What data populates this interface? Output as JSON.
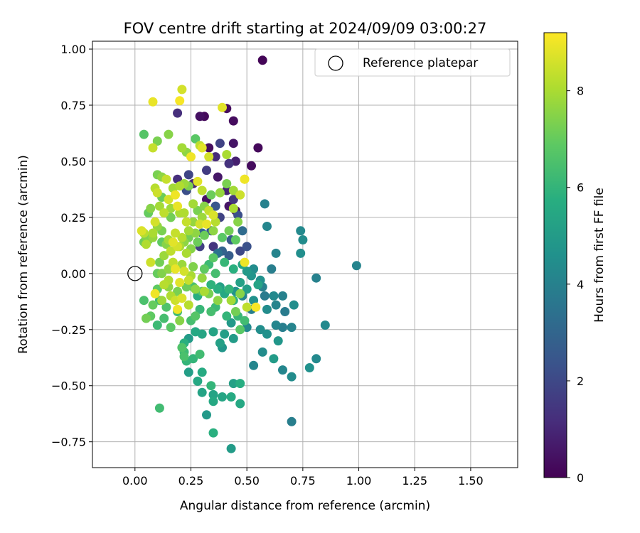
{
  "chart_data": {
    "type": "scatter",
    "title": "FOV centre drift starting at 2024/09/09 03:00:27",
    "xlabel": "Angular distance from reference (arcmin)",
    "ylabel": "Rotation from reference (arcmin)",
    "xlim": [
      -0.19,
      1.71
    ],
    "ylim": [
      -0.865,
      1.035
    ],
    "x_ticks": [
      0.0,
      0.25,
      0.5,
      0.75,
      1.0,
      1.25,
      1.5
    ],
    "x_tick_labels": [
      "0.00",
      "0.25",
      "0.50",
      "0.75",
      "1.00",
      "1.25",
      "1.50"
    ],
    "y_ticks": [
      -0.75,
      -0.5,
      -0.25,
      0.0,
      0.25,
      0.5,
      0.75,
      1.0
    ],
    "y_tick_labels": [
      "−0.75",
      "−0.50",
      "−0.25",
      "0.00",
      "0.25",
      "0.50",
      "0.75",
      "1.00"
    ],
    "grid": true,
    "legend": {
      "placement": "top-right",
      "entries": [
        {
          "label": "Reference platepar",
          "marker": "open-circle"
        }
      ]
    },
    "reference_point": {
      "x": 0.0,
      "y": 0.0
    },
    "colorbar": {
      "label": "Hours from first FF file",
      "range": [
        0,
        9.2
      ],
      "ticks": [
        0,
        2,
        4,
        6,
        8
      ],
      "tick_labels": [
        "0",
        "2",
        "4",
        "6",
        "8"
      ],
      "colormap": "viridis"
    },
    "points": [
      [
        0.57,
        0.95,
        0.1
      ],
      [
        0.29,
        0.7,
        0.4
      ],
      [
        0.31,
        0.7,
        0.2
      ],
      [
        0.41,
        0.735,
        0.3
      ],
      [
        0.19,
        0.715,
        1.2
      ],
      [
        0.44,
        0.68,
        0.3
      ],
      [
        0.38,
        0.58,
        1.8
      ],
      [
        0.44,
        0.58,
        0.5
      ],
      [
        0.55,
        0.56,
        0.2
      ],
      [
        0.33,
        0.56,
        0.3
      ],
      [
        0.52,
        0.48,
        0.3
      ],
      [
        0.45,
        0.5,
        0.8
      ],
      [
        0.36,
        0.52,
        1.1
      ],
      [
        0.42,
        0.49,
        1.3
      ],
      [
        0.32,
        0.46,
        1.6
      ],
      [
        0.24,
        0.44,
        1.9
      ],
      [
        0.19,
        0.42,
        1.2
      ],
      [
        0.37,
        0.43,
        0.6
      ],
      [
        0.26,
        0.4,
        1.0
      ],
      [
        0.41,
        0.37,
        0.9
      ],
      [
        0.23,
        0.37,
        2.2
      ],
      [
        0.44,
        0.33,
        1.4
      ],
      [
        0.32,
        0.33,
        0.4
      ],
      [
        0.42,
        0.3,
        0.5
      ],
      [
        0.45,
        0.28,
        0.4
      ],
      [
        0.36,
        0.3,
        2.5
      ],
      [
        0.46,
        0.26,
        2.2
      ],
      [
        0.38,
        0.25,
        1.8
      ],
      [
        0.34,
        0.19,
        2.6
      ],
      [
        0.48,
        0.19,
        3.2
      ],
      [
        0.3,
        0.18,
        3.0
      ],
      [
        0.43,
        0.15,
        2.6
      ],
      [
        0.35,
        0.12,
        1.4
      ],
      [
        0.29,
        0.12,
        1.7
      ],
      [
        0.39,
        0.1,
        2.9
      ],
      [
        0.47,
        0.1,
        2.0
      ],
      [
        0.5,
        0.12,
        2.3
      ],
      [
        0.37,
        0.09,
        3.5
      ],
      [
        0.42,
        0.08,
        2.7
      ],
      [
        0.58,
        0.31,
        4.0
      ],
      [
        0.59,
        0.21,
        4.2
      ],
      [
        0.74,
        0.19,
        4.3
      ],
      [
        0.75,
        0.15,
        4.4
      ],
      [
        0.63,
        0.09,
        4.1
      ],
      [
        0.74,
        0.09,
        4.5
      ],
      [
        0.99,
        0.035,
        4.1
      ],
      [
        0.61,
        0.02,
        3.9
      ],
      [
        0.53,
        0.02,
        4.4
      ],
      [
        0.56,
        -0.03,
        4.6
      ],
      [
        0.57,
        -0.06,
        4.0
      ],
      [
        0.81,
        -0.02,
        4.0
      ],
      [
        0.66,
        -0.1,
        4.0
      ],
      [
        0.62,
        -0.1,
        4.3
      ],
      [
        0.58,
        -0.1,
        3.8
      ],
      [
        0.53,
        -0.12,
        4.6
      ],
      [
        0.48,
        -0.1,
        4.2
      ],
      [
        0.45,
        -0.08,
        4.7
      ],
      [
        0.52,
        -0.16,
        3.9
      ],
      [
        0.59,
        -0.16,
        4.4
      ],
      [
        0.63,
        -0.14,
        4.1
      ],
      [
        0.71,
        -0.14,
        4.5
      ],
      [
        0.67,
        -0.17,
        3.8
      ],
      [
        0.63,
        -0.23,
        4.2
      ],
      [
        0.59,
        -0.27,
        4.6
      ],
      [
        0.66,
        -0.24,
        3.9
      ],
      [
        0.7,
        -0.24,
        4.1
      ],
      [
        0.56,
        -0.25,
        4.5
      ],
      [
        0.5,
        -0.24,
        4.3
      ],
      [
        0.85,
        -0.23,
        4.3
      ],
      [
        0.64,
        -0.3,
        4.8
      ],
      [
        0.62,
        -0.38,
        5.0
      ],
      [
        0.57,
        -0.35,
        4.4
      ],
      [
        0.53,
        -0.41,
        4.2
      ],
      [
        0.66,
        -0.43,
        4.2
      ],
      [
        0.7,
        -0.46,
        4.4
      ],
      [
        0.78,
        -0.42,
        4.6
      ],
      [
        0.81,
        -0.38,
        4.3
      ],
      [
        0.7,
        -0.66,
        3.9
      ],
      [
        0.43,
        -0.22,
        4.9
      ],
      [
        0.4,
        -0.27,
        5.1
      ],
      [
        0.44,
        -0.29,
        5.0
      ],
      [
        0.39,
        -0.33,
        4.8
      ],
      [
        0.38,
        -0.31,
        5.2
      ],
      [
        0.35,
        -0.26,
        5.3
      ],
      [
        0.3,
        -0.27,
        5.4
      ],
      [
        0.27,
        -0.26,
        5.5
      ],
      [
        0.24,
        -0.29,
        5.0
      ],
      [
        0.22,
        -0.31,
        5.8
      ],
      [
        0.24,
        -0.44,
        5.1
      ],
      [
        0.3,
        -0.44,
        5.6
      ],
      [
        0.28,
        -0.48,
        5.5
      ],
      [
        0.3,
        -0.53,
        5.3
      ],
      [
        0.34,
        -0.5,
        6.0
      ],
      [
        0.35,
        -0.54,
        5.3
      ],
      [
        0.35,
        -0.57,
        5.5
      ],
      [
        0.39,
        -0.55,
        5.4
      ],
      [
        0.43,
        -0.55,
        5.6
      ],
      [
        0.32,
        -0.63,
        4.9
      ],
      [
        0.35,
        -0.71,
        5.8
      ],
      [
        0.43,
        -0.78,
        5.0
      ],
      [
        0.44,
        -0.49,
        5.2
      ],
      [
        0.47,
        -0.49,
        5.7
      ],
      [
        0.47,
        -0.58,
        5.5
      ],
      [
        0.11,
        -0.6,
        6.3
      ],
      [
        0.23,
        -0.39,
        6.0
      ],
      [
        0.22,
        -0.37,
        6.5
      ],
      [
        0.22,
        -0.35,
        6.2
      ],
      [
        0.21,
        -0.33,
        6.6
      ],
      [
        0.29,
        -0.36,
        6.3
      ],
      [
        0.26,
        -0.38,
        6.0
      ],
      [
        0.16,
        -0.24,
        6.8
      ],
      [
        0.1,
        -0.23,
        6.2
      ],
      [
        0.13,
        -0.2,
        6.4
      ],
      [
        0.07,
        -0.19,
        6.9
      ],
      [
        0.05,
        -0.2,
        7.2
      ],
      [
        0.04,
        -0.12,
        6.5
      ],
      [
        0.11,
        -0.12,
        6.3
      ],
      [
        0.08,
        -0.14,
        7.0
      ],
      [
        0.14,
        -0.15,
        6.6
      ],
      [
        0.19,
        -0.17,
        6.2
      ],
      [
        0.2,
        -0.21,
        7.5
      ],
      [
        0.25,
        -0.21,
        6.4
      ],
      [
        0.27,
        -0.19,
        6.7
      ],
      [
        0.29,
        -0.16,
        6.1
      ],
      [
        0.34,
        -0.17,
        6.4
      ],
      [
        0.36,
        -0.15,
        6.2
      ],
      [
        0.41,
        -0.19,
        6.0
      ],
      [
        0.46,
        -0.19,
        6.1
      ],
      [
        0.47,
        -0.25,
        6.8
      ],
      [
        0.49,
        -0.21,
        6.3
      ],
      [
        0.44,
        -0.12,
        5.9
      ],
      [
        0.4,
        -0.09,
        5.5
      ],
      [
        0.37,
        -0.07,
        5.8
      ],
      [
        0.38,
        -0.06,
        5.2
      ],
      [
        0.34,
        -0.05,
        5.9
      ],
      [
        0.3,
        -0.08,
        6.7
      ],
      [
        0.28,
        -0.1,
        5.7
      ],
      [
        0.26,
        -0.06,
        6.5
      ],
      [
        0.23,
        -0.06,
        7.1
      ],
      [
        0.19,
        -0.08,
        7.3
      ],
      [
        0.15,
        -0.06,
        7.6
      ],
      [
        0.13,
        -0.05,
        8.2
      ],
      [
        0.1,
        -0.07,
        6.9
      ],
      [
        0.09,
        -0.09,
        9.0
      ],
      [
        0.12,
        -0.12,
        7.8
      ],
      [
        0.16,
        -0.1,
        8.1
      ],
      [
        0.18,
        -0.12,
        8.5
      ],
      [
        0.21,
        -0.11,
        8.7
      ],
      [
        0.19,
        -0.16,
        9.0
      ],
      [
        0.24,
        -0.14,
        8.2
      ],
      [
        0.25,
        -0.01,
        8.0
      ],
      [
        0.22,
        0.01,
        8.6
      ],
      [
        0.18,
        0.02,
        8.9
      ],
      [
        0.17,
        0.05,
        8.3
      ],
      [
        0.21,
        0.04,
        7.8
      ],
      [
        0.26,
        0.03,
        7.4
      ],
      [
        0.31,
        0.02,
        6.9
      ],
      [
        0.3,
        -0.02,
        7.7
      ],
      [
        0.36,
        0.0,
        6.4
      ],
      [
        0.33,
        0.04,
        6.2
      ],
      [
        0.35,
        0.07,
        6.8
      ],
      [
        0.4,
        0.05,
        6.1
      ],
      [
        0.44,
        0.02,
        5.8
      ],
      [
        0.48,
        0.04,
        5.4
      ],
      [
        0.5,
        0.01,
        4.9
      ],
      [
        0.47,
        -0.04,
        5.2
      ],
      [
        0.42,
        -0.07,
        6.0
      ],
      [
        0.5,
        -0.07,
        5.1
      ],
      [
        0.55,
        -0.05,
        5.3
      ],
      [
        0.52,
        -0.01,
        4.7
      ],
      [
        0.54,
        -0.15,
        9.1
      ],
      [
        0.5,
        -0.15,
        8.3
      ],
      [
        0.45,
        -0.17,
        7.2
      ],
      [
        0.47,
        -0.09,
        7.5
      ],
      [
        0.43,
        -0.12,
        7.9
      ],
      [
        0.37,
        -0.12,
        7.6
      ],
      [
        0.33,
        -0.09,
        7.3
      ],
      [
        0.31,
        -0.08,
        8.0
      ],
      [
        0.27,
        -0.07,
        7.6
      ],
      [
        0.24,
        -0.03,
        8.4
      ],
      [
        0.2,
        -0.04,
        8.8
      ],
      [
        0.15,
        -0.03,
        8.1
      ],
      [
        0.12,
        0.0,
        7.4
      ],
      [
        0.1,
        0.0,
        7.0
      ],
      [
        0.07,
        0.05,
        8.5
      ],
      [
        0.11,
        0.05,
        7.2
      ],
      [
        0.15,
        0.02,
        7.6
      ],
      [
        0.13,
        0.08,
        7.8
      ],
      [
        0.16,
        0.1,
        8.3
      ],
      [
        0.19,
        0.12,
        8.6
      ],
      [
        0.23,
        0.09,
        8.0
      ],
      [
        0.25,
        0.11,
        7.5
      ],
      [
        0.28,
        0.14,
        7.1
      ],
      [
        0.27,
        0.18,
        7.6
      ],
      [
        0.24,
        0.19,
        7.9
      ],
      [
        0.21,
        0.16,
        8.2
      ],
      [
        0.18,
        0.18,
        8.4
      ],
      [
        0.15,
        0.15,
        7.9
      ],
      [
        0.12,
        0.19,
        7.3
      ],
      [
        0.1,
        0.21,
        7.7
      ],
      [
        0.08,
        0.18,
        8.0
      ],
      [
        0.05,
        0.16,
        7.4
      ],
      [
        0.04,
        0.14,
        7.1
      ],
      [
        0.03,
        0.19,
        8.7
      ],
      [
        0.04,
        0.18,
        8.2
      ],
      [
        0.09,
        0.23,
        8.6
      ],
      [
        0.13,
        0.27,
        8.3
      ],
      [
        0.16,
        0.29,
        7.8
      ],
      [
        0.19,
        0.3,
        8.9
      ],
      [
        0.22,
        0.27,
        8.1
      ],
      [
        0.26,
        0.31,
        7.9
      ],
      [
        0.28,
        0.28,
        7.3
      ],
      [
        0.31,
        0.3,
        7.5
      ],
      [
        0.33,
        0.28,
        8.4
      ],
      [
        0.35,
        0.26,
        8.7
      ],
      [
        0.32,
        0.22,
        8.9
      ],
      [
        0.36,
        0.23,
        8.2
      ],
      [
        0.35,
        0.19,
        7.6
      ],
      [
        0.31,
        0.17,
        7.1
      ],
      [
        0.39,
        0.16,
        6.8
      ],
      [
        0.42,
        0.19,
        7.2
      ],
      [
        0.45,
        0.15,
        6.9
      ],
      [
        0.46,
        0.23,
        7.5
      ],
      [
        0.44,
        0.29,
        8.0
      ],
      [
        0.47,
        0.35,
        8.5
      ],
      [
        0.49,
        0.42,
        8.7
      ],
      [
        0.44,
        0.37,
        7.9
      ],
      [
        0.41,
        0.4,
        7.3
      ],
      [
        0.38,
        0.36,
        7.7
      ],
      [
        0.34,
        0.35,
        7.1
      ],
      [
        0.3,
        0.37,
        8.3
      ],
      [
        0.28,
        0.41,
        8.8
      ],
      [
        0.24,
        0.39,
        7.4
      ],
      [
        0.22,
        0.4,
        7.8
      ],
      [
        0.2,
        0.39,
        8.1
      ],
      [
        0.17,
        0.38,
        7.9
      ],
      [
        0.14,
        0.42,
        8.4
      ],
      [
        0.12,
        0.43,
        7.6
      ],
      [
        0.1,
        0.44,
        7.3
      ],
      [
        0.09,
        0.38,
        8.2
      ],
      [
        0.1,
        0.36,
        8.5
      ],
      [
        0.12,
        0.34,
        7.1
      ],
      [
        0.15,
        0.33,
        8.6
      ],
      [
        0.18,
        0.35,
        9.0
      ],
      [
        0.06,
        0.27,
        7.0
      ],
      [
        0.07,
        0.29,
        7.5
      ],
      [
        0.11,
        0.3,
        7.9
      ],
      [
        0.16,
        0.25,
        7.2
      ],
      [
        0.2,
        0.27,
        8.0
      ],
      [
        0.23,
        0.23,
        8.4
      ],
      [
        0.26,
        0.23,
        7.7
      ],
      [
        0.29,
        0.22,
        8.6
      ],
      [
        0.3,
        0.25,
        7.8
      ],
      [
        0.24,
        0.16,
        7.2
      ],
      [
        0.22,
        0.14,
        7.6
      ],
      [
        0.2,
        0.12,
        8.0
      ],
      [
        0.17,
        0.14,
        8.8
      ],
      [
        0.14,
        0.13,
        7.5
      ],
      [
        0.12,
        0.14,
        6.9
      ],
      [
        0.08,
        0.16,
        7.7
      ],
      [
        0.05,
        0.13,
        8.1
      ],
      [
        0.06,
        0.15,
        7.3
      ],
      [
        0.04,
        0.62,
        6.7
      ],
      [
        0.1,
        0.59,
        7.3
      ],
      [
        0.08,
        0.56,
        8.4
      ],
      [
        0.15,
        0.62,
        7.5
      ],
      [
        0.08,
        0.765,
        8.9
      ],
      [
        0.21,
        0.82,
        8.6
      ],
      [
        0.2,
        0.77,
        9.1
      ],
      [
        0.39,
        0.74,
        8.8
      ],
      [
        0.27,
        0.6,
        6.8
      ],
      [
        0.21,
        0.56,
        7.9
      ],
      [
        0.23,
        0.54,
        7.6
      ],
      [
        0.29,
        0.57,
        8.3
      ],
      [
        0.3,
        0.56,
        8.8
      ],
      [
        0.25,
        0.52,
        9.0
      ],
      [
        0.33,
        0.52,
        8.6
      ],
      [
        0.41,
        0.53,
        8.0
      ],
      [
        0.49,
        0.42,
        9.0
      ],
      [
        0.49,
        0.05,
        9.0
      ]
    ]
  }
}
